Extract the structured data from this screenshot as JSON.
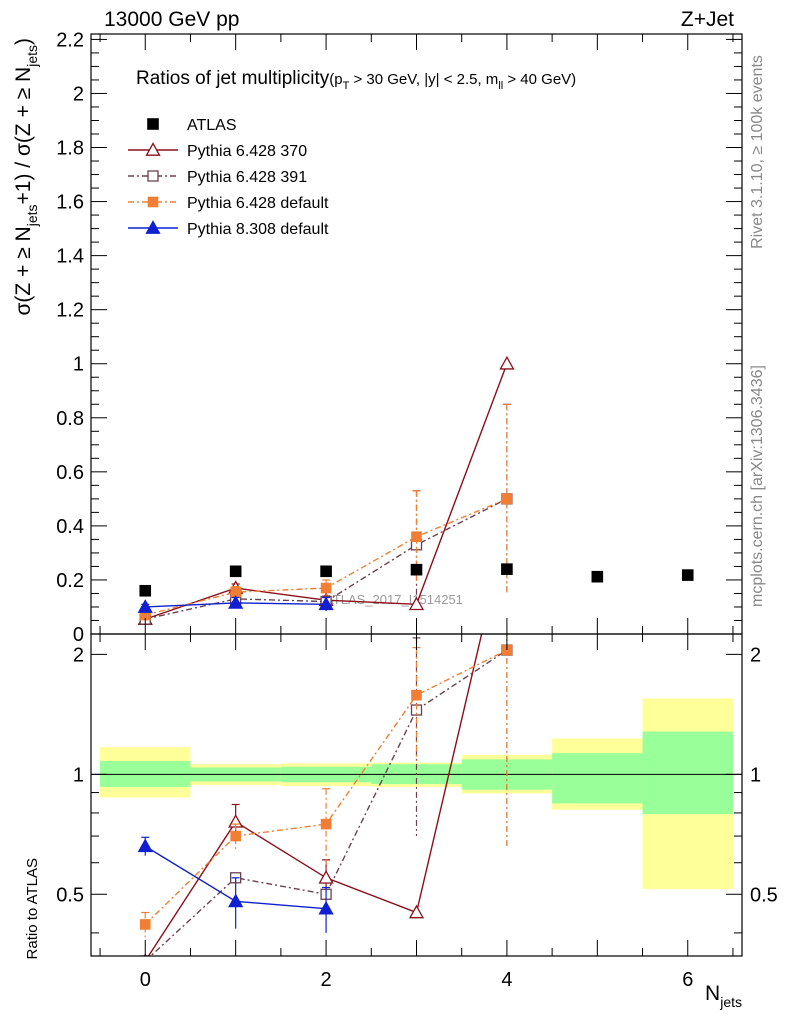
{
  "header": {
    "left": "13000 GeV pp",
    "right": "Z+Jet"
  },
  "side": {
    "rivet": "Rivet 3.1.10, ≥ 100k events",
    "mcplots": "mcplots.cern.ch [arXiv:1306.3436]"
  },
  "watermark": "ATLAS_2017_I1514251",
  "chart_data": {
    "type": "scatter",
    "title": {
      "main": "Ratios of jet multiplicity",
      "cuts": "(p",
      "cuts_sub1": "T",
      "cuts_mid": " > 30 GeV, |y| < 2.5, m",
      "cuts_sub2": "ll",
      "cuts_end": " > 40 GeV)"
    },
    "xlabel": {
      "base": "N",
      "sub": "jets"
    },
    "ylabel_top": {
      "p1": "σ(Z + ≥ N",
      "s1": "jets",
      "p2": "+1) / σ(Z + ≥ N",
      "s2": "jets",
      "p3": ")"
    },
    "ylabel_bottom": "Ratio to ATLAS",
    "xlim": [
      -0.6,
      6.6
    ],
    "ylim_top": [
      0,
      2.22
    ],
    "ylim_bottom": [
      0.35,
      2.25
    ],
    "x_ticks": [
      "0",
      "2",
      "4",
      "6"
    ],
    "y_ticks_top": [
      "0",
      "0.2",
      "0.4",
      "0.6",
      "0.8",
      "1",
      "1.2",
      "1.4",
      "1.6",
      "1.8",
      "2",
      "2.2"
    ],
    "y_ticks_bottom": [
      "0.5",
      "1",
      "2"
    ],
    "legend_position": "top-left",
    "data": {
      "name": "ATLAS",
      "x": [
        0,
        1,
        2,
        3,
        4,
        5,
        6
      ],
      "y": [
        0.16,
        0.232,
        0.232,
        0.238,
        0.24,
        0.212,
        0.218
      ],
      "band_stat": [
        [
          0.93,
          1.08
        ],
        [
          0.96,
          1.04
        ],
        [
          0.955,
          1.045
        ],
        [
          0.945,
          1.06
        ],
        [
          0.915,
          1.09
        ],
        [
          0.845,
          1.13
        ],
        [
          0.795,
          1.28
        ]
      ],
      "band_total": [
        [
          0.875,
          1.17
        ],
        [
          0.94,
          1.06
        ],
        [
          0.935,
          1.065
        ],
        [
          0.93,
          1.07
        ],
        [
          0.895,
          1.12
        ],
        [
          0.815,
          1.23
        ],
        [
          0.515,
          1.55
        ]
      ]
    },
    "series": [
      {
        "name": "Pythia 6.428 370",
        "color": "#8b0f1a",
        "dash": "",
        "marker": "triangle-open",
        "x": [
          0,
          1,
          2,
          3,
          4
        ],
        "y": [
          0.055,
          0.17,
          0.125,
          0.11,
          1.0
        ],
        "err_top": [
          0,
          0.015,
          0.015,
          0,
          0
        ],
        "ratio": [
          0.34,
          0.76,
          0.55,
          0.45,
          4.2
        ],
        "ratio_err": [
          0,
          0.08,
          0.06,
          0,
          0
        ]
      },
      {
        "name": "Pythia 6.428 391",
        "color": "#6b4150",
        "dash": "6,3,2,3",
        "marker": "square-open",
        "x": [
          0,
          1,
          2,
          3,
          4
        ],
        "y": [
          0.055,
          0.13,
          0.12,
          0.33,
          0.5
        ],
        "err_top": [
          0,
          0,
          0,
          0.2,
          0.35
        ],
        "ratio": [
          0.34,
          0.55,
          0.5,
          1.45,
          2.05
        ],
        "ratio_err": [
          0,
          0,
          0,
          0.75,
          1.4
        ]
      },
      {
        "name": "Pythia 6.428 default",
        "color": "#f07f35",
        "dash": "6,3,2,3",
        "marker": "square-filled",
        "x": [
          0,
          1,
          2,
          3,
          4
        ],
        "y": [
          0.07,
          0.155,
          0.17,
          0.36,
          0.5
        ],
        "err_top": [
          0.012,
          0.02,
          0.03,
          0.17,
          0.35
        ],
        "ratio": [
          0.42,
          0.7,
          0.75,
          1.58,
          2.05
        ],
        "ratio_err": [
          0.03,
          0.05,
          0.17,
          0.5,
          1.4
        ]
      },
      {
        "name": "Pythia 8.308 default",
        "color": "#1020d0",
        "dash": "",
        "marker": "triangle-filled",
        "x": [
          0,
          1,
          2
        ],
        "y": [
          0.1,
          0.115,
          0.11
        ],
        "err_top": [
          0.01,
          0.02,
          0.025
        ],
        "ratio": [
          0.66,
          0.48,
          0.46
        ],
        "ratio_err": [
          0.035,
          0.07,
          0.06
        ]
      }
    ]
  }
}
